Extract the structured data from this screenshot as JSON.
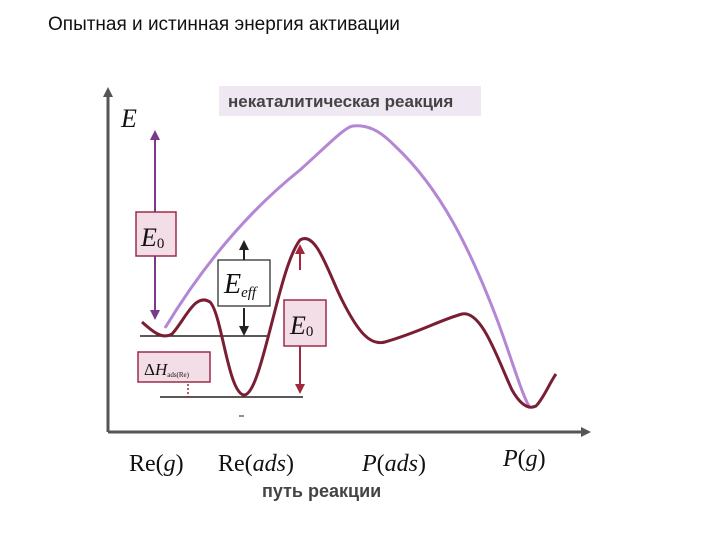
{
  "title": "Опытная и истинная энергия активации",
  "legend_label": "некаталитическая реакция",
  "axis": {
    "y_symbol": "E",
    "x_label": "путь реакции"
  },
  "energy_labels": {
    "e0_left": {
      "main": "E",
      "sub": "0"
    },
    "eff": {
      "main": "E",
      "sub": "eff"
    },
    "e0_right": {
      "main": "E",
      "sub": "0"
    },
    "dh": {
      "delta": "Δ",
      "main": "H",
      "sub": "ads(Re)"
    }
  },
  "x_states": {
    "re_g": {
      "prefix": "Re(",
      "arg": "g",
      "suffix": ")"
    },
    "re_ads": {
      "prefix": "Re(",
      "arg": "ads",
      "suffix": ")"
    },
    "p_ads": {
      "prefix": "P",
      "mid": "(",
      "arg": "ads",
      "suffix": ")"
    },
    "p_g": {
      "prefix": "P",
      "mid": "(",
      "arg": "g",
      "suffix": ")"
    }
  },
  "colors": {
    "noncatalytic_curve": "#b487d6",
    "catalytic_curve": "#7a1f33",
    "label_box_fill": "#f3dde6",
    "label_box_border": "#9c2b4a",
    "legend_fill": "#efe8f2",
    "arrow": "#7a3a8a"
  }
}
